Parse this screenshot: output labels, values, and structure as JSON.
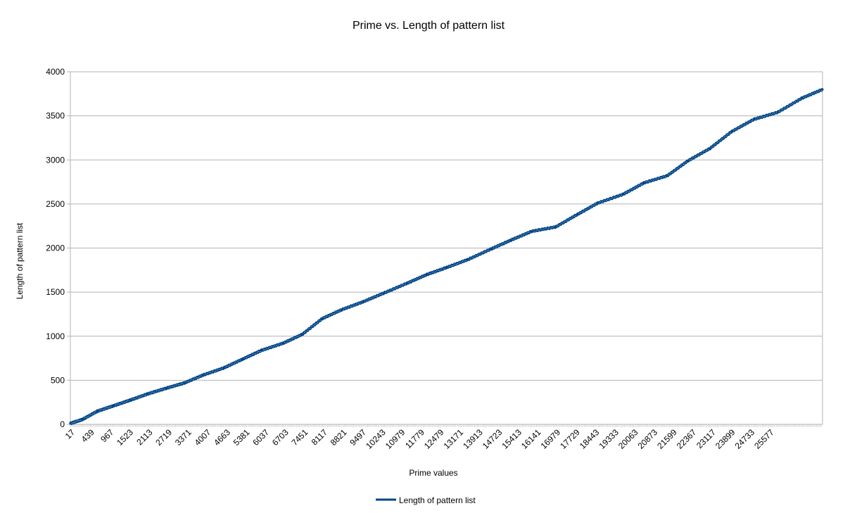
{
  "chart_data": {
    "type": "line",
    "title": "Prime vs. Length of pattern list",
    "xlabel": "Prime values",
    "ylabel": "Length of pattern list",
    "x_tick_labels": [
      "17",
      "439",
      "967",
      "1523",
      "2113",
      "2719",
      "3371",
      "4007",
      "4663",
      "5381",
      "6037",
      "6703",
      "7451",
      "8117",
      "8821",
      "9497",
      "10243",
      "10979",
      "11779",
      "12479",
      "13171",
      "13913",
      "14723",
      "15413",
      "16141",
      "16979",
      "17729",
      "18443",
      "19333",
      "20063",
      "20873",
      "21599",
      "22367",
      "23117",
      "23899",
      "24733",
      "25577"
    ],
    "ylim": [
      0,
      4000
    ],
    "y_ticks": [
      0,
      500,
      1000,
      1500,
      2000,
      2500,
      3000,
      3500,
      4000
    ],
    "grid": "horizontal",
    "legend_position": "bottom",
    "colors": {
      "series": "#004586",
      "grid": "#b3b3b3",
      "axis": "#b3b3b3"
    },
    "series": [
      {
        "name": "Length of pattern list",
        "x": [
          17,
          439,
          967,
          1523,
          2113,
          2719,
          3371,
          4007,
          4663,
          5381,
          6037,
          6703,
          7451,
          8117,
          8821,
          9497,
          10243,
          10979,
          11779,
          12479,
          13171,
          13913,
          14723,
          15413,
          16141,
          16979,
          17729,
          18443,
          19333,
          20063,
          20873,
          21599,
          22367,
          23117,
          23899,
          24733,
          25577,
          26300
        ],
        "y": [
          10,
          55,
          150,
          210,
          275,
          345,
          410,
          470,
          560,
          640,
          740,
          840,
          920,
          1020,
          1200,
          1300,
          1390,
          1490,
          1600,
          1700,
          1780,
          1870,
          1990,
          2090,
          2190,
          2240,
          2380,
          2510,
          2610,
          2740,
          2820,
          2990,
          3130,
          3320,
          3460,
          3540,
          3700,
          3800
        ]
      }
    ]
  }
}
